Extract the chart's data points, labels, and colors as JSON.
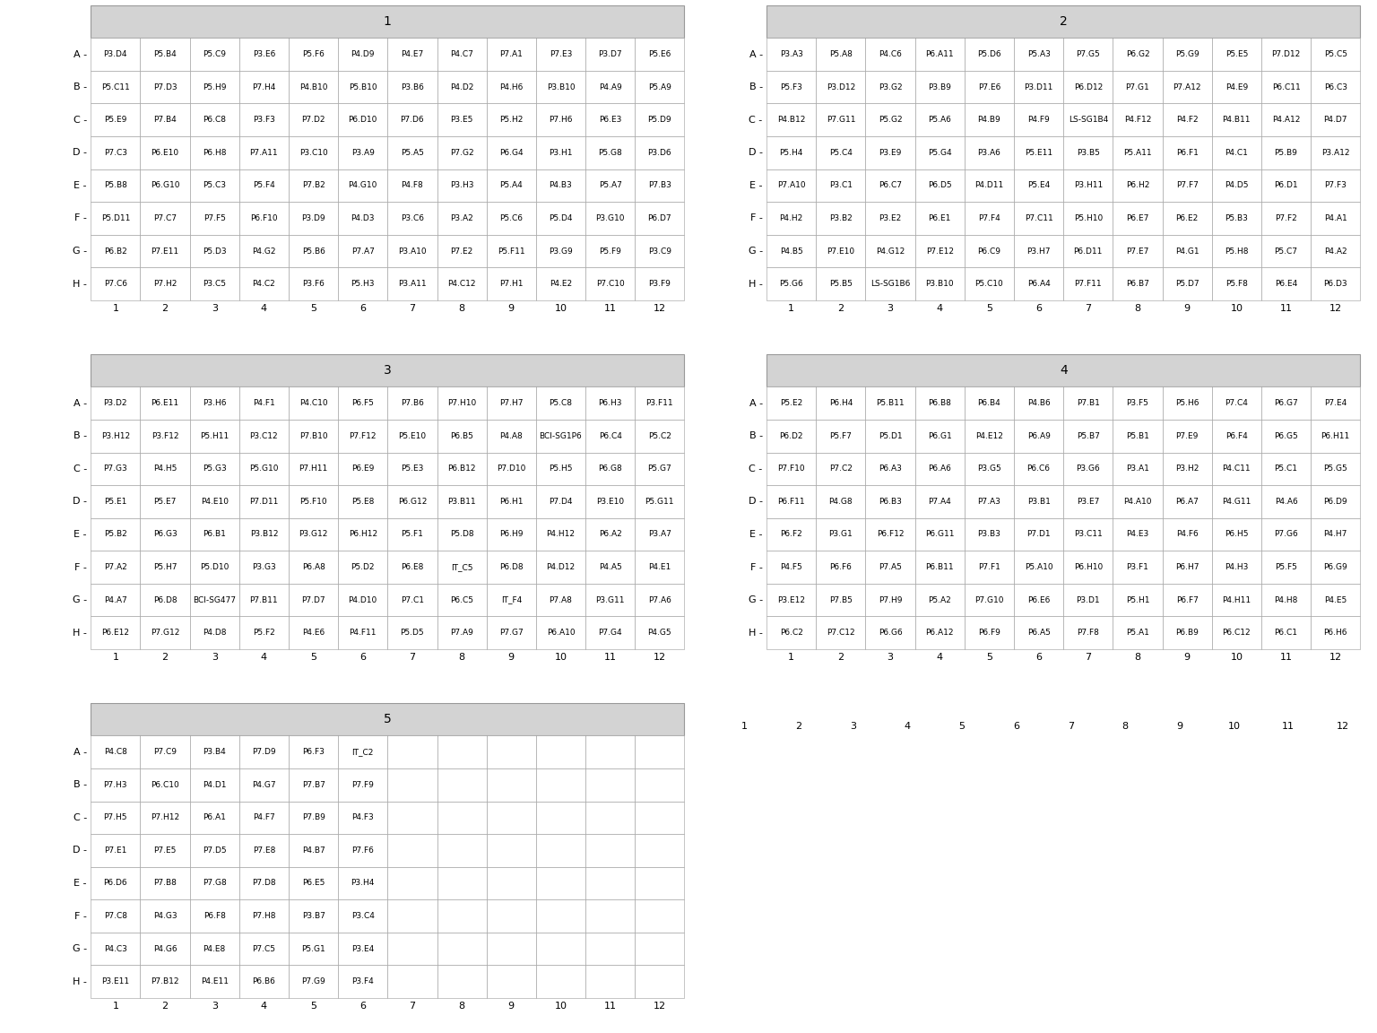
{
  "plates": [
    {
      "title": "1",
      "rows": [
        "A",
        "B",
        "C",
        "D",
        "E",
        "F",
        "G",
        "H"
      ],
      "ncols": 12,
      "row_texts": [
        "P3.D4 P5.B4 P5.C9 P3.E6 P5.F6 P4.D9 P4.E7 P4.C7 P7.A1 P7.E3 P3.D7 P5.E6",
        "P5.C11P7.D3 P5.H9 P7.H4P4.B10P5.B10P3.B6 P4.D2 P4.H6P3.B10P4.A9 P5.A9",
        "P5.E9 P7.B4 P6.C8 P3.F3 P7.D2P6.D10P7.D6 P3.E5 P5.H2 P7.H6 P6.E3 P5.D9",
        "P7.C3P6.E10P6.H8P7.A11P3.C10P3.A9 P5.A5 P7.G2 P6.G4 P3.H1 P5.G8 P3.D6",
        "P5.B8P6.G10P5.C3 P5.F4 P7.B2P4.G10P4.F8 P3.H3 P5.A4 P4.B3 P5.A7 P7.B3",
        "P5.D11P7.C7 P7.F5P6.F10P3.D9 P4.D3 P3.C6 P3.A2 P5.C6 P5.D4P3.G10P6.D7",
        "P6.B2P7.E11P5.D3 P4.G2 P5.B6 P7.A7P3.A10P7.E2P5.F11P3.G9 P5.F9 P3.C9",
        "P7.C6 P7.H2 P3.C5 P4.C2 P3.F6 P5.H3P3.A11P4.C12P7.H1 P4.E2P7.C10P3.F9"
      ]
    },
    {
      "title": "2",
      "rows": [
        "A",
        "B",
        "C",
        "D",
        "E",
        "F",
        "G",
        "H"
      ],
      "ncols": 12,
      "row_texts": [
        "P3.A3 P5.A8 P4.C6P6.A11P5.D6 P5.A3 P7.G5 P6.G2 P5.G9 P5.E5P7.D12P5.C5",
        "P5.F3P3.D12P3.G2 P3.B9 P7.E6P3.D11P6.D12P7.G1P7.A12P4.E9P6.C11P6.C3",
        "P4.B12P7.G11P5.G2 P5.A6 P4.B9 P4.F9LS-SG1B4.F12P4.F2P4.B11P4.A12P4.D7",
        "P5.H4 P5.C4 P3.E9 P5.G4 P3.A6P5.E11P3.B5P5.A11P6.F1 P4.C1 P5.B9P3.A12",
        "P7.A10P3.C1 P6.C7 P6.D5P4.D11P5.E4P3.H11P6.H2 P7.F7 P4.D5 P6.D1 P7.F3",
        "P4.H2 P3.B2 P3.E2 P6.E1 P7.F4P7.C11P5.H10P6.E7 P6.E2 P5.B3 P7.F2 P4.A1",
        "P4.B5P7.E10P4.G12P7.E12P6.C9 P3.H7P6.D11P7.E7 P4.G1 P5.H8 P5.C7 P4.A2",
        "P5.G6 P5.B5LS-SG1B6.B10P5.C10P6.A4P7.F11P6.B7 P5.D7 P5.F8 P6.E4 P6.D3"
      ]
    },
    {
      "title": "3",
      "rows": [
        "A",
        "B",
        "C",
        "D",
        "E",
        "F",
        "G",
        "H"
      ],
      "ncols": 12,
      "row_texts": [
        "P3.D2P6.E11P3.H6 P4.F1P4.C10P6.F5 P7.B6P7.H10P7.H7 P5.C8 P6.H3P3.F11",
        "P3.H12P3.F12P5.H11P3.C12P7.B10P7.F12P5.E10P6.B5 P4.A8BCI-SG1P6.C4 P5.C2",
        "P7.G3 P4.H5 P5.G3P5.G10P7.H11P6.E9 P5.E3P6.B12P7.D10P5.H5 P6.G8 P5.G7",
        "P5.E1 P5.E7P4.E10P7.D11P5.F10P5.E8P6.G12P3.B11P6.H1 P7.D4P3.E10P5.G11",
        "P5.B2 P6.G3 P6.B1P3.B12P3.G12P6.H12P5.F1 P5.D8 P6.H9P4.H12P6.A2 P3.A7",
        "P7.A2 P5.H7P5.D10P3.G3 P6.A8 P5.D2 P6.E8 IT_C5 P6.D8P4.D12P4.A5 P4.E1",
        "P4.A7 P6.D8BCI-SG477.B11P7.D7P4.D10P7.C1 P6.C5 IT_F4 P7.A8P3.G11P7.A6",
        "P6.E12P7.G12P4.D8 P5.F2 P4.E6P4.F11P5.D5 P7.A9 P7.G7P6.A10P7.G4 P4.G5"
      ]
    },
    {
      "title": "4",
      "rows": [
        "A",
        "B",
        "C",
        "D",
        "E",
        "F",
        "G",
        "H"
      ],
      "ncols": 12,
      "row_texts": [
        "P5.E2 P6.H4P5.B11P6.B8 P6.B4 P4.B6 P7.B1 P3.F5 P5.H6 P7.C4 P6.G7 P7.E4",
        "P6.D2 P5.F7 P5.D1 P6.G1P4.E12P6.A9 P5.B7 P5.B1 P7.E9 P6.F4 P6.G5P6.H11",
        "P7.F10P7.C2 P6.A3 P6.A6 P3.G5 P6.C6 P3.G6 P3.A1 P3.H2P4.C11P5.C1 P5.G5",
        "P6.F11P4.G8 P6.B3 P7.A4 P7.A3 P3.B1 P3.E7P4.A10P6.A7P4.G11P4.A6 P6.D9",
        "P6.F2 P3.G1P6.F12P6.G11P3.B3 P7.D1P3.C11P4.E3 P4.F6 P6.H5 P7.G6 P4.H7",
        "P4.F5 P6.F6 P7.A5P6.B11P7.F1P5.A10P6.H10P3.F1 P6.H7 P4.H3 P5.F5 P6.G9",
        "P3.E12P7.B5 P7.H9 P5.A2P7.G10P6.E6 P3.D1 P5.H1 P6.F7P4.H11P4.H8 P4.E5",
        "P6.C2P7.C12P6.G6P6.A12P6.F9 P6.A5 P7.F8 P5.A1 P6.B9P6.C12P6.C1 P6.H6"
      ]
    },
    {
      "title": "5",
      "rows": [
        "A",
        "B",
        "C",
        "D",
        "E",
        "F",
        "G",
        "H"
      ],
      "ncols": 12,
      "row_texts": [
        "P4.C8 P7.C9 P3.B4 P7.D9 P6.F3 IT_C2",
        "P7.H3P6.C10P4.D1 P4.G7 P7.B7 P7.F9",
        "P7.H5P7.H12P6.A1 P4.F7 P7.B9 P4.F3",
        "P7.E1 P7.E5 P7.D5 P7.E8 P4.B7 P7.F6",
        "P6.D6 P7.B8 P7.G8 P7.D8 P6.E5 P3.H4",
        "P7.C8 P4.G3 P6.F8 P7.H8 P3.B7 P3.C4",
        "P4.C3 P4.G6 P4.E8 P7.C5 P5.G1 P3.E4",
        "P3.E11P7.B12P4.E11P6.B6 P7.G9 P3.F4"
      ]
    }
  ],
  "plate_cell_data": {
    "1": [
      [
        "P3.D4",
        "P5.B4",
        "P5.C9",
        "P3.E6",
        "P5.F6",
        "P4.D9",
        "P4.E7",
        "P4.C7",
        "P7.A1",
        "P7.E3",
        "P3.D7",
        "P5.E6"
      ],
      [
        "P5.C11",
        "P7.D3",
        "P5.H9",
        "P7.H4",
        "P4.B10",
        "P5.B10",
        "P3.B6",
        "P4.D2",
        "P4.H6",
        "P3.B10",
        "P4.A9",
        "P5.A9"
      ],
      [
        "P5.E9",
        "P7.B4",
        "P6.C8",
        "P3.F3",
        "P7.D2",
        "P6.D10",
        "P7.D6",
        "P3.E5",
        "P5.H2",
        "P7.H6",
        "P6.E3",
        "P5.D9"
      ],
      [
        "P7.C3",
        "P6.E10",
        "P6.H8",
        "P7.A11",
        "P3.C10",
        "P3.A9",
        "P5.A5",
        "P7.G2",
        "P6.G4",
        "P3.H1",
        "P5.G8",
        "P3.D6"
      ],
      [
        "P5.B8",
        "P6.G10",
        "P5.C3",
        "P5.F4",
        "P7.B2",
        "P4.G10",
        "P4.F8",
        "P3.H3",
        "P5.A4",
        "P4.B3",
        "P5.A7",
        "P7.B3"
      ],
      [
        "P5.D11",
        "P7.C7",
        "P7.F5",
        "P6.F10",
        "P3.D9",
        "P4.D3",
        "P3.C6",
        "P3.A2",
        "P5.C6",
        "P5.D4",
        "P3.G10",
        "P6.D7"
      ],
      [
        "P6.B2",
        "P7.E11",
        "P5.D3",
        "P4.G2",
        "P5.B6",
        "P7.A7",
        "P3.A10",
        "P7.E2",
        "P5.F11",
        "P3.G9",
        "P5.F9",
        "P3.C9"
      ],
      [
        "P7.C6",
        "P7.H2",
        "P3.C5",
        "P4.C2",
        "P3.F6",
        "P5.H3",
        "P3.A11",
        "P4.C12",
        "P7.H1",
        "P4.E2",
        "P7.C10",
        "P3.F9"
      ]
    ],
    "2": [
      [
        "P3.A3",
        "P5.A8",
        "P4.C6",
        "P6.A11",
        "P5.D6",
        "P5.A3",
        "P7.G5",
        "P6.G2",
        "P5.G9",
        "P5.E5",
        "P7.D12",
        "P5.C5"
      ],
      [
        "P5.F3",
        "P3.D12",
        "P3.G2",
        "P3.B9",
        "P7.E6",
        "P3.D11",
        "P6.D12",
        "P7.G1",
        "P7.A12",
        "P4.E9",
        "P6.C11",
        "P6.C3"
      ],
      [
        "P4.B12",
        "P7.G11",
        "P5.G2",
        "P5.A6",
        "P4.B9",
        "P4.F9",
        "LS-SG1B4",
        "P4.F12",
        "P4.F2",
        "P4.B11",
        "P4.A12",
        "P4.D7"
      ],
      [
        "P5.H4",
        "P5.C4",
        "P3.E9",
        "P5.G4",
        "P3.A6",
        "P5.E11",
        "P3.B5",
        "P5.A11",
        "P6.F1",
        "P4.C1",
        "P5.B9",
        "P3.A12"
      ],
      [
        "P7.A10",
        "P3.C1",
        "P6.C7",
        "P6.D5",
        "P4.D11",
        "P5.E4",
        "P3.H11",
        "P6.H2",
        "P7.F7",
        "P4.D5",
        "P6.D1",
        "P7.F3"
      ],
      [
        "P4.H2",
        "P3.B2",
        "P3.E2",
        "P6.E1",
        "P7.F4",
        "P7.C11",
        "P5.H10",
        "P6.E7",
        "P6.E2",
        "P5.B3",
        "P7.F2",
        "P4.A1"
      ],
      [
        "P4.B5",
        "P7.E10",
        "P4.G12",
        "P7.E12",
        "P6.C9",
        "P3.H7",
        "P6.D11",
        "P7.E7",
        "P4.G1",
        "P5.H8",
        "P5.C7",
        "P4.A2"
      ],
      [
        "P5.G6",
        "P5.B5",
        "LS-SG1B6",
        "P3.B10",
        "P5.C10",
        "P6.A4",
        "P7.F11",
        "P6.B7",
        "P5.D7",
        "P5.F8",
        "P6.E4",
        "P6.D3"
      ]
    ],
    "3": [
      [
        "P3.D2",
        "P6.E11",
        "P3.H6",
        "P4.F1",
        "P4.C10",
        "P6.F5",
        "P7.B6",
        "P7.H10",
        "P7.H7",
        "P5.C8",
        "P6.H3",
        "P3.F11"
      ],
      [
        "P3.H12",
        "P3.F12",
        "P5.H11",
        "P3.C12",
        "P7.B10",
        "P7.F12",
        "P5.E10",
        "P6.B5",
        "P4.A8",
        "BCI-SG1P6",
        "P6.C4",
        "P5.C2"
      ],
      [
        "P7.G3",
        "P4.H5",
        "P5.G3",
        "P5.G10",
        "P7.H11",
        "P6.E9",
        "P5.E3",
        "P6.B12",
        "P7.D10",
        "P5.H5",
        "P6.G8",
        "P5.G7"
      ],
      [
        "P5.E1",
        "P5.E7",
        "P4.E10",
        "P7.D11",
        "P5.F10",
        "P5.E8",
        "P6.G12",
        "P3.B11",
        "P6.H1",
        "P7.D4",
        "P3.E10",
        "P5.G11"
      ],
      [
        "P5.B2",
        "P6.G3",
        "P6.B1",
        "P3.B12",
        "P3.G12",
        "P6.H12",
        "P5.F1",
        "P5.D8",
        "P6.H9",
        "P4.H12",
        "P6.A2",
        "P3.A7"
      ],
      [
        "P7.A2",
        "P5.H7",
        "P5.D10",
        "P3.G3",
        "P6.A8",
        "P5.D2",
        "P6.E8",
        "IT_C5",
        "P6.D8",
        "P4.D12",
        "P4.A5",
        "P4.E1"
      ],
      [
        "P4.A7",
        "P6.D8",
        "BCI-SG477",
        "P7.B11",
        "P7.D7",
        "P4.D10",
        "P7.C1",
        "P6.C5",
        "IT_F4",
        "P7.A8",
        "P3.G11",
        "P7.A6"
      ],
      [
        "P6.E12",
        "P7.G12",
        "P4.D8",
        "P5.F2",
        "P4.E6",
        "P4.F11",
        "P5.D5",
        "P7.A9",
        "P7.G7",
        "P6.A10",
        "P7.G4",
        "P4.G5"
      ]
    ],
    "4": [
      [
        "P5.E2",
        "P6.H4",
        "P5.B11",
        "P6.B8",
        "P6.B4",
        "P4.B6",
        "P7.B1",
        "P3.F5",
        "P5.H6",
        "P7.C4",
        "P6.G7",
        "P7.E4"
      ],
      [
        "P6.D2",
        "P5.F7",
        "P5.D1",
        "P6.G1",
        "P4.E12",
        "P6.A9",
        "P5.B7",
        "P5.B1",
        "P7.E9",
        "P6.F4",
        "P6.G5",
        "P6.H11"
      ],
      [
        "P7.F10",
        "P7.C2",
        "P6.A3",
        "P6.A6",
        "P3.G5",
        "P6.C6",
        "P3.G6",
        "P3.A1",
        "P3.H2",
        "P4.C11",
        "P5.C1",
        "P5.G5"
      ],
      [
        "P6.F11",
        "P4.G8",
        "P6.B3",
        "P7.A4",
        "P7.A3",
        "P3.B1",
        "P3.E7",
        "P4.A10",
        "P6.A7",
        "P4.G11",
        "P4.A6",
        "P6.D9"
      ],
      [
        "P6.F2",
        "P3.G1",
        "P6.F12",
        "P6.G11",
        "P3.B3",
        "P7.D1",
        "P3.C11",
        "P4.E3",
        "P4.F6",
        "P6.H5",
        "P7.G6",
        "P4.H7"
      ],
      [
        "P4.F5",
        "P6.F6",
        "P7.A5",
        "P6.B11",
        "P7.F1",
        "P5.A10",
        "P6.H10",
        "P3.F1",
        "P6.H7",
        "P4.H3",
        "P5.F5",
        "P6.G9"
      ],
      [
        "P3.E12",
        "P7.B5",
        "P7.H9",
        "P5.A2",
        "P7.G10",
        "P6.E6",
        "P3.D1",
        "P5.H1",
        "P6.F7",
        "P4.H11",
        "P4.H8",
        "P4.E5"
      ],
      [
        "P6.C2",
        "P7.C12",
        "P6.G6",
        "P6.A12",
        "P6.F9",
        "P6.A5",
        "P7.F8",
        "P5.A1",
        "P6.B9",
        "P6.C12",
        "P6.C1",
        "P6.H6"
      ]
    ],
    "5": [
      [
        "P4.C8",
        "P7.C9",
        "P3.B4",
        "P7.D9",
        "P6.F3",
        "IT_C2",
        "",
        "",
        "",
        "",
        "",
        ""
      ],
      [
        "P7.H3",
        "P6.C10",
        "P4.D1",
        "P4.G7",
        "P7.B7",
        "P7.F9",
        "",
        "",
        "",
        "",
        "",
        ""
      ],
      [
        "P7.H5",
        "P7.H12",
        "P6.A1",
        "P4.F7",
        "P7.B9",
        "P4.F3",
        "",
        "",
        "",
        "",
        "",
        ""
      ],
      [
        "P7.E1",
        "P7.E5",
        "P7.D5",
        "P7.E8",
        "P4.B7",
        "P7.F6",
        "",
        "",
        "",
        "",
        "",
        ""
      ],
      [
        "P6.D6",
        "P7.B8",
        "P7.G8",
        "P7.D8",
        "P6.E5",
        "P3.H4",
        "",
        "",
        "",
        "",
        "",
        ""
      ],
      [
        "P7.C8",
        "P4.G3",
        "P6.F8",
        "P7.H8",
        "P3.B7",
        "P3.C4",
        "",
        "",
        "",
        "",
        "",
        ""
      ],
      [
        "P4.C3",
        "P4.G6",
        "P4.E8",
        "P7.C5",
        "P5.G1",
        "P3.E4",
        "",
        "",
        "",
        "",
        "",
        ""
      ],
      [
        "P3.E11",
        "P7.B12",
        "P4.E11",
        "P6.B6",
        "P7.G9",
        "P3.F4",
        "",
        "",
        "",
        "",
        "",
        ""
      ]
    ]
  },
  "header_color": "#d3d3d3",
  "grid_line_color": "#999999",
  "background_color": "#ffffff",
  "text_color": "#000000",
  "cell_font_size": 6.5,
  "header_font_size": 10,
  "row_label_font_size": 8,
  "col_label_font_size": 8,
  "ncols": 12,
  "nrows": 8
}
